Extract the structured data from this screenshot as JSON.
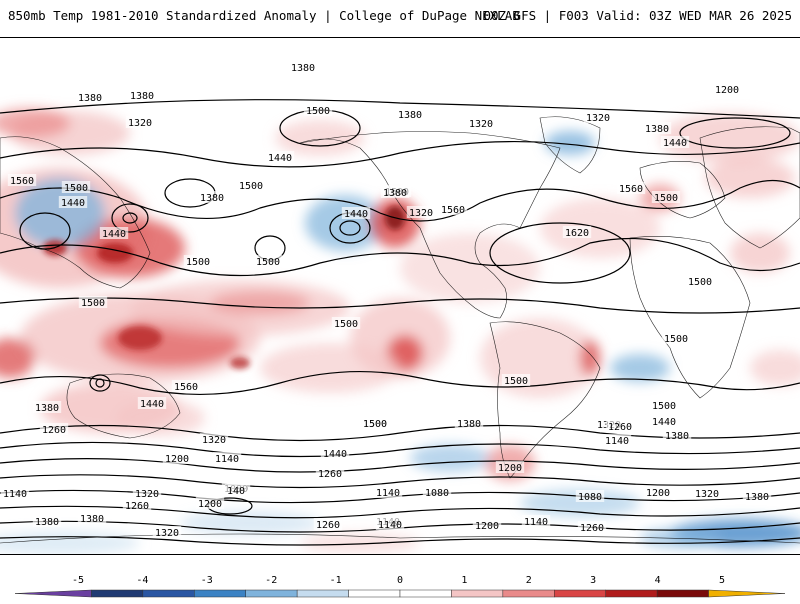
{
  "header": {
    "title": "850mb Temp 1981-2010 Standardized Anomaly | College of DuPage NEXLAB",
    "run_info": "00Z GFS | F003 Valid: 03Z WED MAR 26 2025"
  },
  "contour_labels": [
    {
      "text": "1380"
    },
    {
      "text": "1380"
    },
    {
      "text": "1380"
    },
    {
      "text": "1320"
    },
    {
      "text": "1440"
    },
    {
      "text": "1500"
    },
    {
      "text": "1380"
    },
    {
      "text": "1320"
    },
    {
      "text": "1560"
    },
    {
      "text": "1500"
    },
    {
      "text": "1440"
    },
    {
      "text": "1440"
    },
    {
      "text": "1380"
    },
    {
      "text": "1500"
    },
    {
      "text": "1500"
    },
    {
      "text": "1440"
    },
    {
      "text": "1500"
    },
    {
      "text": "1560"
    },
    {
      "text": "1380"
    },
    {
      "text": "1320"
    },
    {
      "text": "1200"
    },
    {
      "text": "1320"
    },
    {
      "text": "1380"
    },
    {
      "text": "1440"
    },
    {
      "text": "1560"
    },
    {
      "text": "1500"
    },
    {
      "text": "1620"
    },
    {
      "text": "1500"
    },
    {
      "text": "1500"
    },
    {
      "text": "1500"
    },
    {
      "text": "1500"
    },
    {
      "text": "1500"
    },
    {
      "text": "1560"
    },
    {
      "text": "1440"
    },
    {
      "text": "1500"
    },
    {
      "text": "1260"
    },
    {
      "text": "1380"
    },
    {
      "text": "1320"
    },
    {
      "text": "1200"
    },
    {
      "text": "1140"
    },
    {
      "text": "1500"
    },
    {
      "text": "1440"
    },
    {
      "text": "1380"
    },
    {
      "text": "1320"
    },
    {
      "text": "1260"
    },
    {
      "text": "1200"
    },
    {
      "text": "1500"
    },
    {
      "text": "1440"
    },
    {
      "text": "1380"
    },
    {
      "text": "1260"
    },
    {
      "text": "1140"
    },
    {
      "text": "1140"
    },
    {
      "text": "1080"
    },
    {
      "text": "1140"
    },
    {
      "text": "1080"
    },
    {
      "text": "1080"
    },
    {
      "text": "1140"
    },
    {
      "text": "1320"
    },
    {
      "text": "1260"
    },
    {
      "text": "1200"
    },
    {
      "text": "140"
    },
    {
      "text": "1380"
    },
    {
      "text": "1380"
    },
    {
      "text": "1320"
    },
    {
      "text": "1260"
    },
    {
      "text": "1140"
    },
    {
      "text": "1200"
    },
    {
      "text": "1140"
    },
    {
      "text": "1260"
    },
    {
      "text": "1200"
    },
    {
      "text": "1320"
    },
    {
      "text": "1380"
    },
    {
      "text": "1500"
    }
  ],
  "colorbar": {
    "ticks": [
      "-5",
      "-4",
      "-3",
      "-2",
      "-1",
      "0",
      "1",
      "2",
      "3",
      "4",
      "5"
    ],
    "colors": [
      "#6a3fa0",
      "#1f3a73",
      "#2a56a3",
      "#3b82c4",
      "#7fb3dc",
      "#c5dcef",
      "#ffffff",
      "#ffffff",
      "#f4c5c5",
      "#e98a8a",
      "#d94545",
      "#b01c1c",
      "#7a0a0a",
      "#f0b000"
    ]
  }
}
